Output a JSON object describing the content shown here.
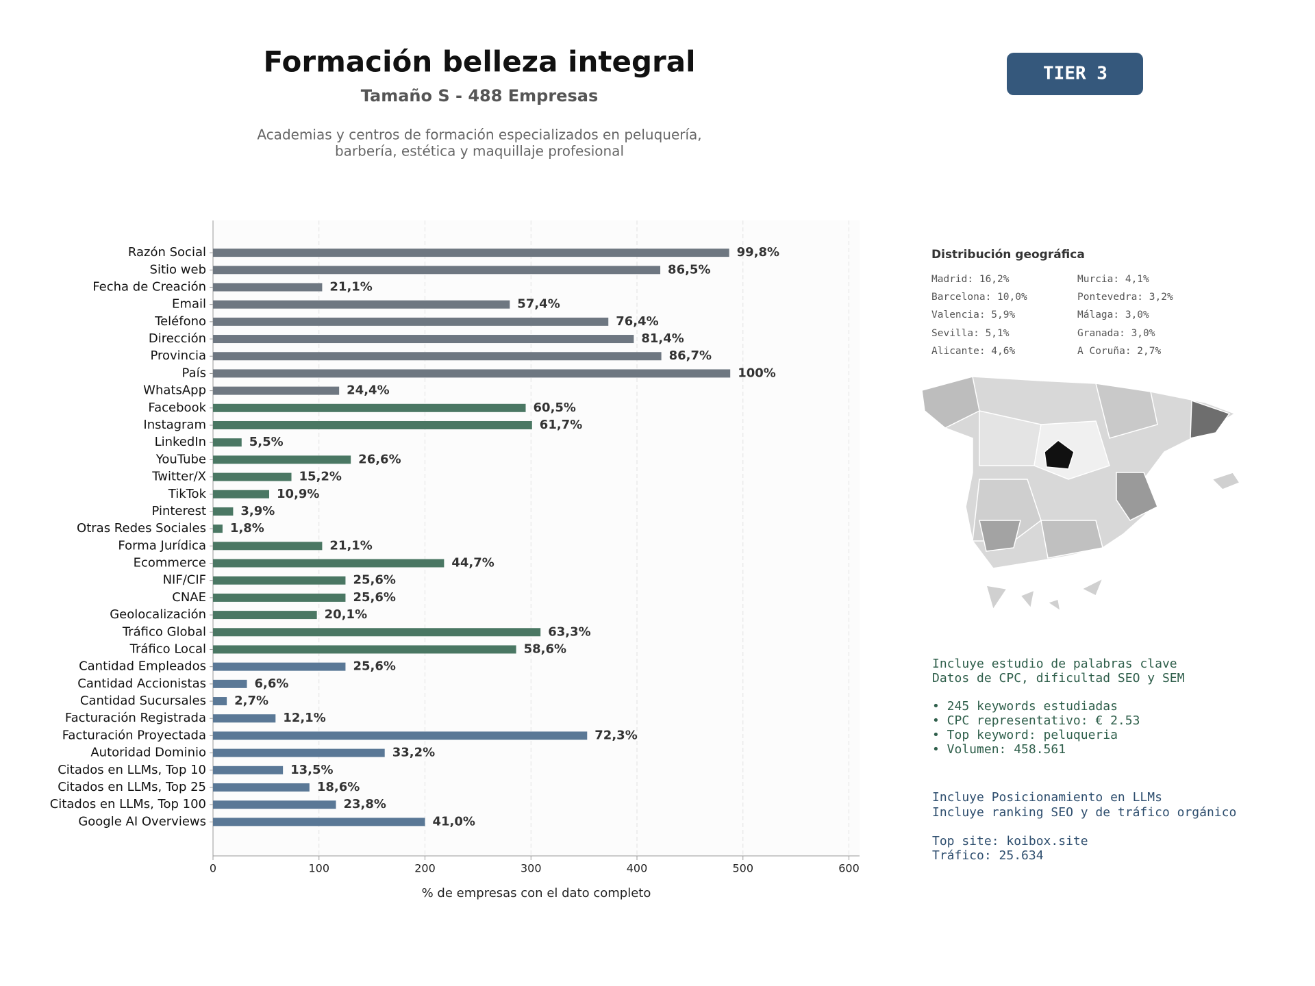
{
  "chart_data": {
    "type": "bar",
    "orientation": "horizontal",
    "title": "Formación belleza integral",
    "subtitle": "Tamaño S - 488 Empresas",
    "description": [
      "Academias y centros de formación especializados en peluquería,",
      "barbería, estética y maquillaje profesional"
    ],
    "badge": "TIER 3",
    "x_label": "% de empresas con el dato completo",
    "categories": [
      "Razón Social",
      "Sitio web",
      "Fecha de Creación",
      "Email",
      "Teléfono",
      "Dirección",
      "Provincia",
      "País",
      "WhatsApp",
      "Facebook",
      "Instagram",
      "LinkedIn",
      "YouTube",
      "Twitter/X",
      "TikTok",
      "Pinterest",
      "Otras Redes Sociales",
      "Forma Jurídica",
      "Ecommerce",
      "NIF/CIF",
      "CNAE",
      "Geolocalización",
      "Tráfico Global",
      "Tráfico Local",
      "Cantidad Empleados",
      "Cantidad Accionistas",
      "Cantidad Sucursales",
      "Facturación Registrada",
      "Facturación Proyectada",
      "Autoridad Dominio",
      "Citados en LLMs, Top 10",
      "Citados en LLMs, Top 25",
      "Citados en LLMs, Top 100",
      "Google AI Overviews"
    ],
    "values": [
      487,
      422,
      103,
      280,
      373,
      397,
      423,
      488,
      119,
      295,
      301,
      27,
      130,
      74,
      53,
      19,
      9,
      103,
      218,
      125,
      125,
      98,
      309,
      286,
      125,
      32,
      13,
      59,
      353,
      162,
      66,
      91,
      116,
      200
    ],
    "value_labels": [
      "99,8%",
      "86,5%",
      "21,1%",
      "57,4%",
      "76,4%",
      "81,4%",
      "86,7%",
      "100%",
      "24,4%",
      "60,5%",
      "61,7%",
      "5,5%",
      "26,6%",
      "15,2%",
      "10,9%",
      "3,9%",
      "1,8%",
      "21,1%",
      "44,7%",
      "25,6%",
      "25,6%",
      "20,1%",
      "63,3%",
      "58,6%",
      "25,6%",
      "6,6%",
      "2,7%",
      "12,1%",
      "72,3%",
      "33,2%",
      "13,5%",
      "18,6%",
      "23,8%",
      "41,0%"
    ],
    "colors": [
      "#6e7781",
      "#6e7781",
      "#6e7781",
      "#6e7781",
      "#6e7781",
      "#6e7781",
      "#6e7781",
      "#6e7781",
      "#6e7781",
      "#4a7763",
      "#4a7763",
      "#4a7763",
      "#4a7763",
      "#4a7763",
      "#4a7763",
      "#4a7763",
      "#4a7763",
      "#4a7763",
      "#4a7763",
      "#4a7763",
      "#4a7763",
      "#4a7763",
      "#4a7763",
      "#4a7763",
      "#5a7896",
      "#5a7896",
      "#5a7896",
      "#5a7896",
      "#5a7896",
      "#5a7896",
      "#5a7896",
      "#5a7896",
      "#5a7896",
      "#5a7896"
    ],
    "xlim": [
      0,
      610
    ],
    "xticks": [
      0,
      100,
      200,
      300,
      400,
      500,
      600
    ],
    "grid": true
  },
  "geo": {
    "title": "Distribución geográfica",
    "left": [
      "Madrid: 16,2%",
      "Barcelona: 10,0%",
      "Valencia: 5,9%",
      "Sevilla: 5,1%",
      "Alicante: 4,6%"
    ],
    "right": [
      "Murcia: 4,1%",
      "Pontevedra: 3,2%",
      "Málaga: 3,0%",
      "Granada: 3,0%",
      "A Coruña: 2,7%"
    ]
  },
  "keywords": [
    "Incluye estudio de palabras clave",
    "Datos de CPC, dificultad SEO y SEM",
    "• 245 keywords estudiadas",
    "• CPC representativo: € 2.53",
    "• Top keyword: peluqueria",
    "• Volumen: 458.561"
  ],
  "llm": [
    "Incluye Posicionamiento en LLMs",
    "Incluye ranking SEO y de tráfico orgánico",
    "Top site: koibox.site",
    "Tráfico: 25.634"
  ]
}
